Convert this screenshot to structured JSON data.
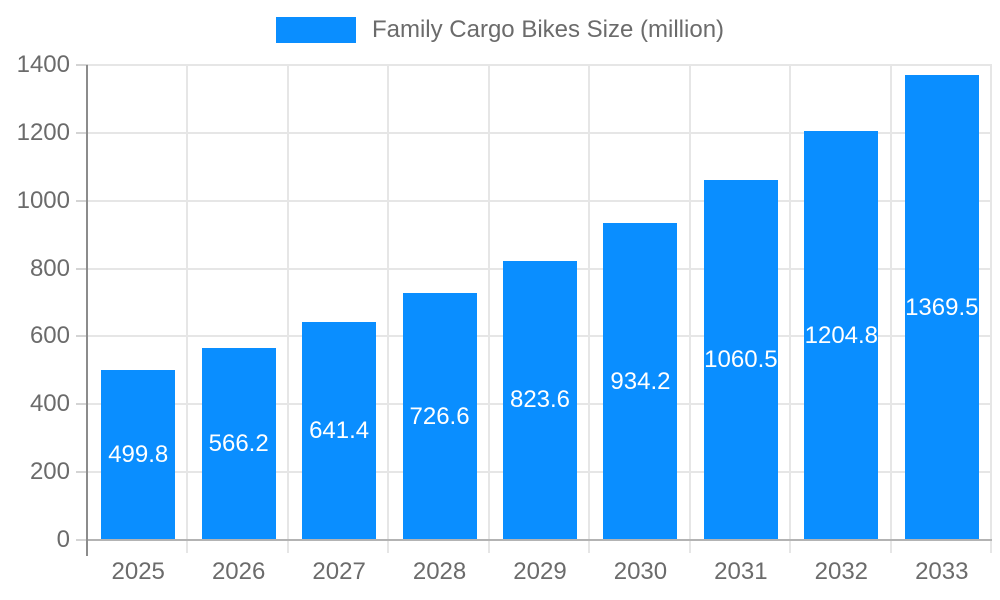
{
  "chart_data": {
    "type": "bar",
    "title": "Family Cargo Bikes Size (million)",
    "series_name": "Family Cargo Bikes Size (million)",
    "categories": [
      "2025",
      "2026",
      "2027",
      "2028",
      "2029",
      "2030",
      "2031",
      "2032",
      "2033"
    ],
    "values": [
      499.8,
      566.2,
      641.4,
      726.6,
      823.6,
      934.2,
      1060.5,
      1204.8,
      1369.5
    ],
    "xlabel": "",
    "ylabel": "",
    "ylim": [
      0,
      1400
    ],
    "yticks": [
      0,
      200,
      400,
      600,
      800,
      1000,
      1200,
      1400
    ],
    "grid": true,
    "legend_position": "top",
    "bar_color": "#0a8eff",
    "value_label_color": "#ffffff",
    "axis_label_color": "#6b6b6b",
    "gridline_color": "#e6e6e6"
  }
}
